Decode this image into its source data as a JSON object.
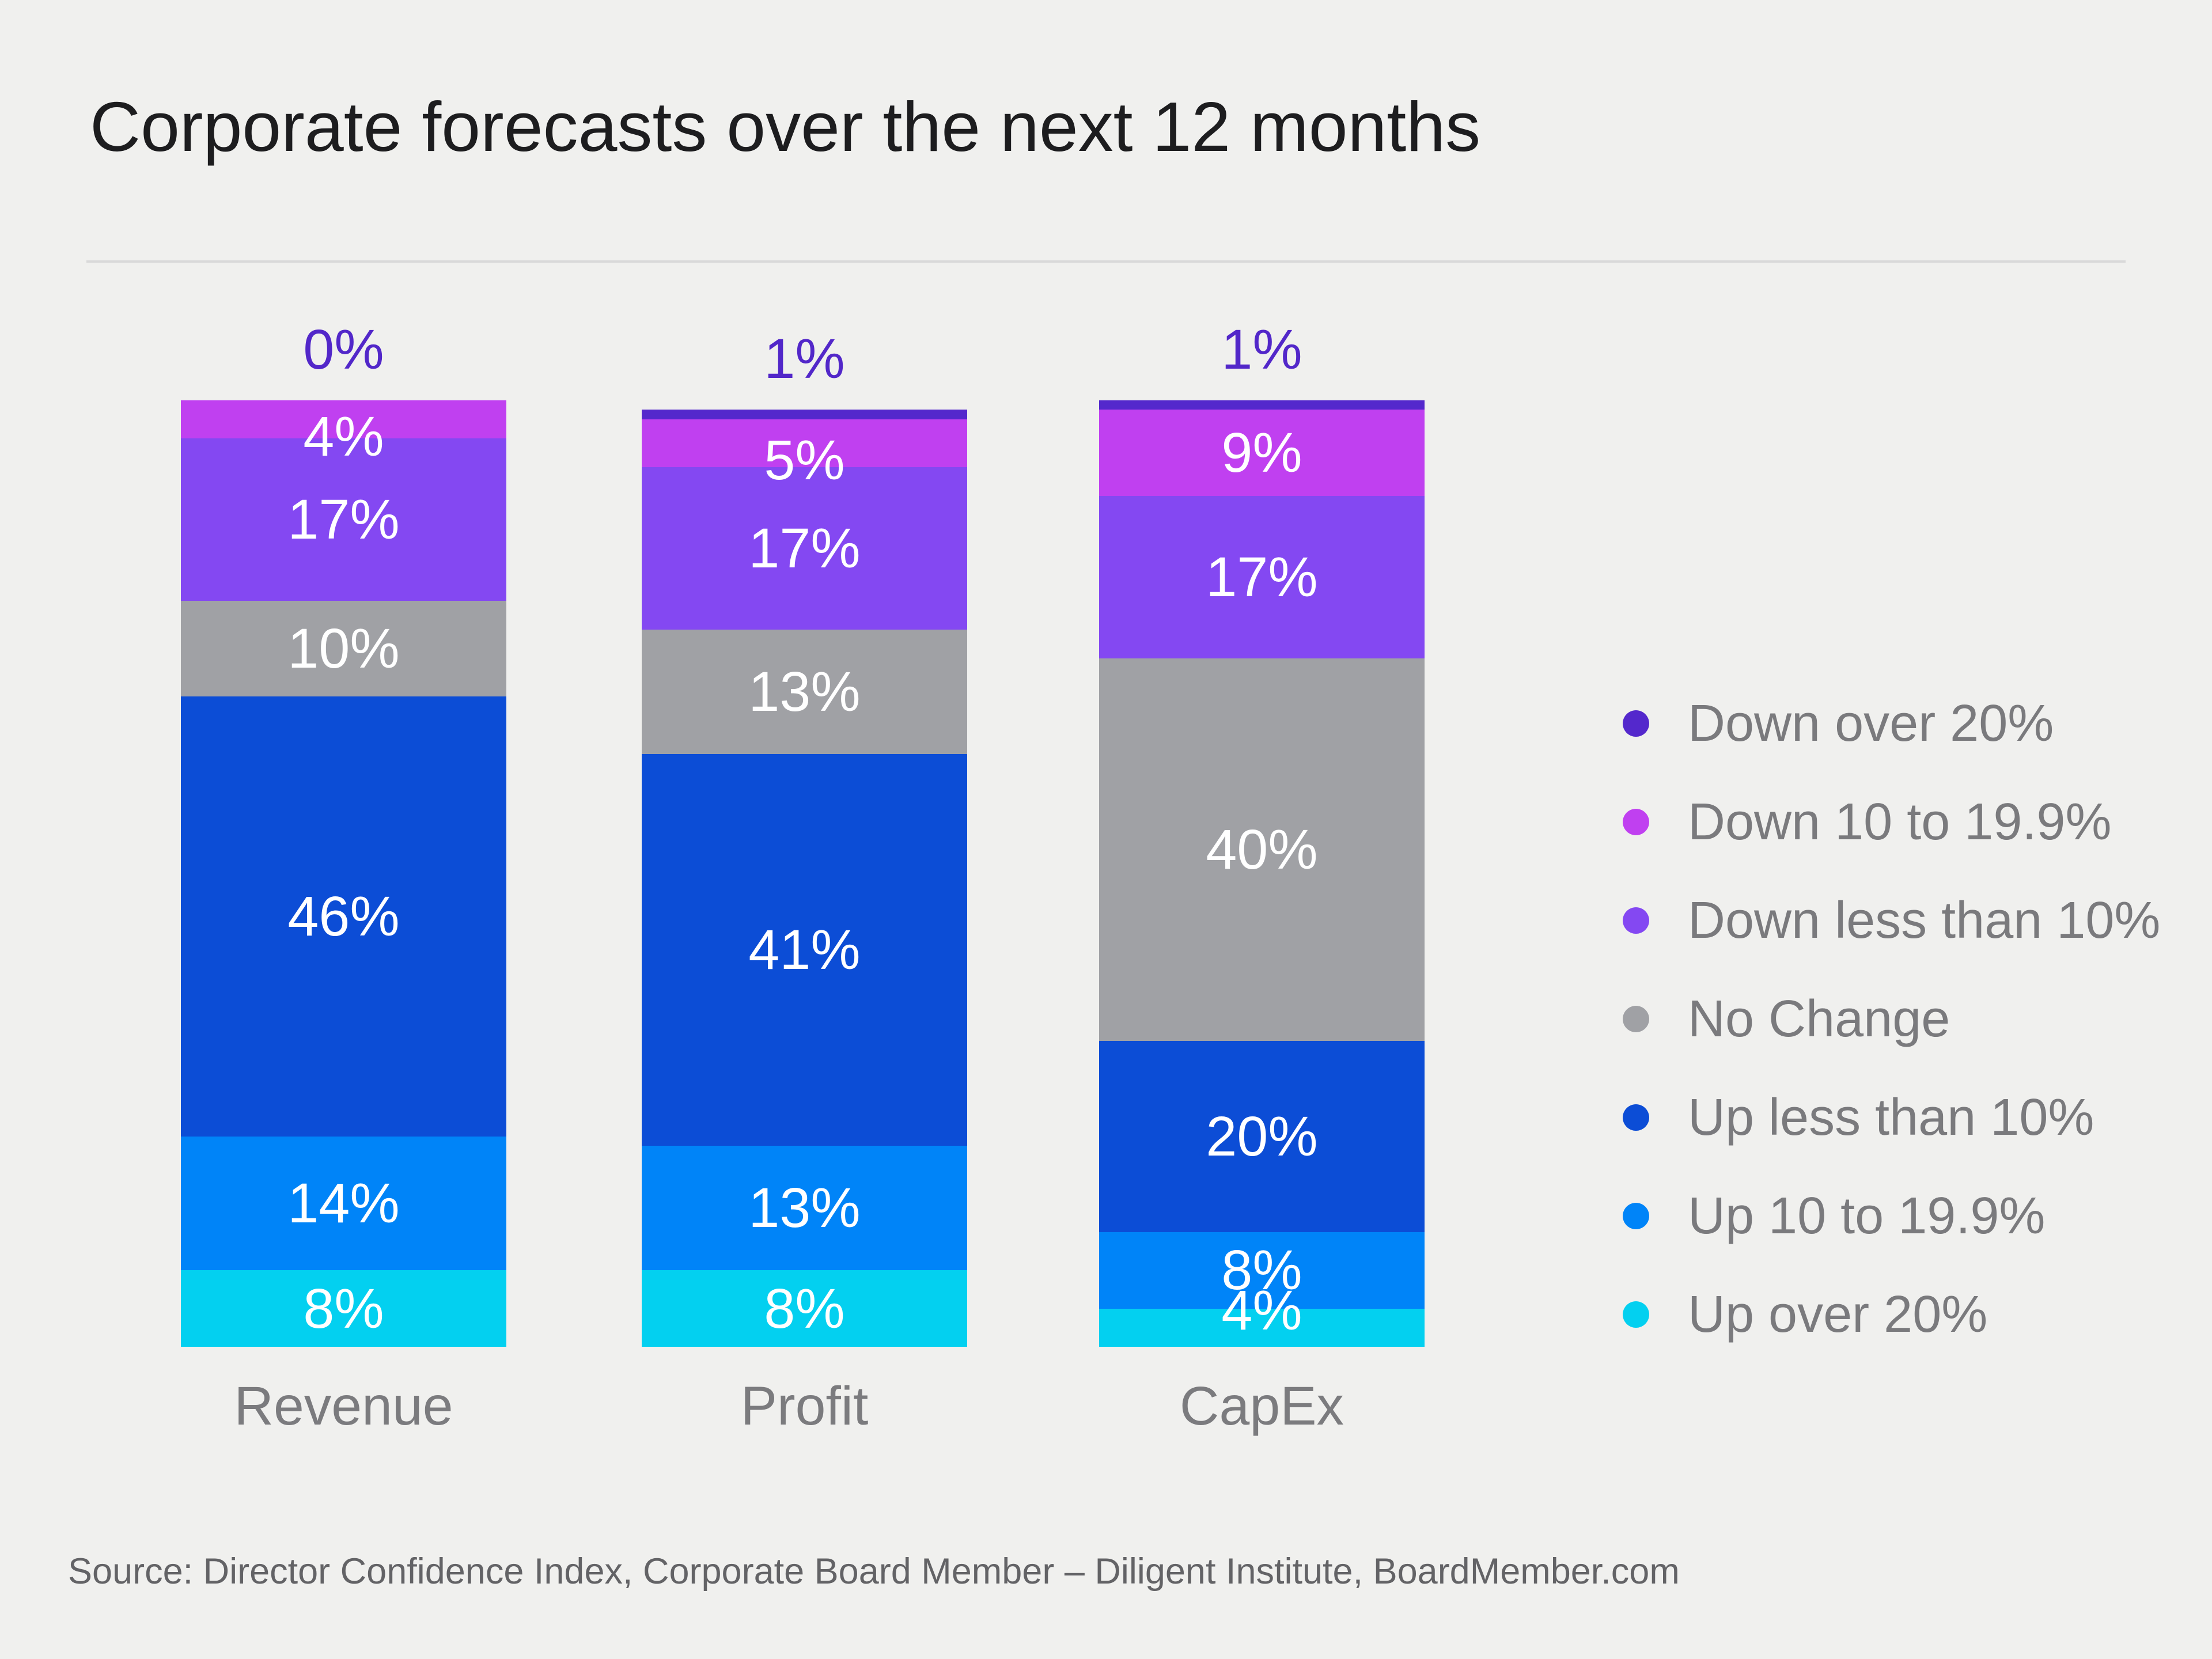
{
  "title": "Corporate forecasts over the next 12 months",
  "source": "Source: Director Confidence Index, Corporate Board Member – Diligent Institute, BoardMember.com",
  "chart_data": {
    "type": "bar",
    "stacked": true,
    "title": "Corporate forecasts over the next 12 months",
    "categories": [
      "Revenue",
      "Profit",
      "CapEx"
    ],
    "series": [
      {
        "name": "Down over 20%",
        "color": "#5428cc",
        "values": [
          0,
          1,
          1
        ]
      },
      {
        "name": "Down 10 to 19.9%",
        "color": "#c040f0",
        "values": [
          4,
          5,
          9
        ]
      },
      {
        "name": "Down less than 10%",
        "color": "#8448f2",
        "values": [
          17,
          17,
          17
        ]
      },
      {
        "name": "No Change",
        "color": "#a0a1a5",
        "values": [
          10,
          13,
          40
        ]
      },
      {
        "name": "Up less than 10%",
        "color": "#0c4dd6",
        "values": [
          46,
          41,
          20
        ]
      },
      {
        "name": "Up 10 to 19.9%",
        "color": "#0084f8",
        "values": [
          14,
          13,
          8
        ]
      },
      {
        "name": "Up over 20%",
        "color": "#03d0f0",
        "values": [
          8,
          8,
          4
        ]
      }
    ],
    "value_suffix": "%",
    "top_label_series": "Down over 20%",
    "top_label_color": "#5227c9",
    "in_bar_label_color": "#ffffff",
    "legend_position": "right",
    "grid": false,
    "ylim": [
      0,
      100
    ]
  }
}
